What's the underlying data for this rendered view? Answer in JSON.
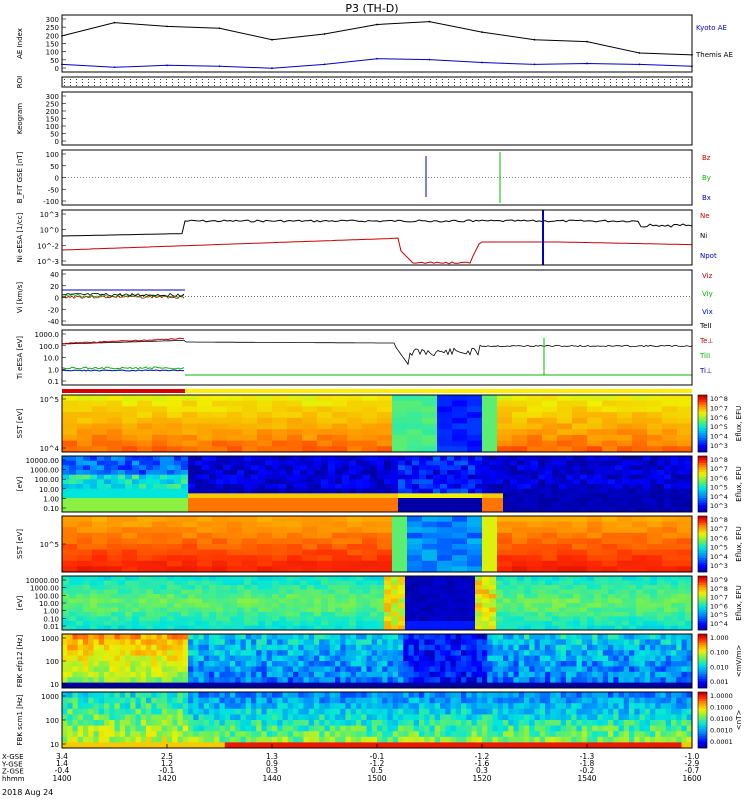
{
  "title": "P3 (TH-D)",
  "footer": {
    "date": "2018 Aug 24",
    "row_labels": [
      "X-GSE",
      "Y-GSE",
      "Z-GSE",
      "hhmm"
    ],
    "columns": [
      {
        "x": "3.4",
        "y": "1.4",
        "z": "-0.4",
        "t": "1400"
      },
      {
        "x": "2.5",
        "y": "1.2",
        "z": "-0.1",
        "t": "1420"
      },
      {
        "x": "1.3",
        "y": "0.9",
        "z": "0.3",
        "t": "1440"
      },
      {
        "x": "-0.1",
        "y": "-1.2",
        "z": "0.5",
        "t": "1500"
      },
      {
        "x": "-1.2",
        "y": "-1.6",
        "z": "0.3",
        "t": "1520"
      },
      {
        "x": "-1.3",
        "y": "-1.8",
        "z": "-0.2",
        "t": "1540"
      },
      {
        "x": "-1.0",
        "y": "-2.9",
        "z": "-0.7",
        "t": "1600"
      }
    ]
  },
  "colors": {
    "kyoto": "#0000cc",
    "red": "#cc0000",
    "green": "#00bb00",
    "blue": "#0000cc",
    "black": "#000000"
  },
  "chart_data": [
    {
      "type": "line",
      "panel": "ae",
      "ylabel": "AE Index",
      "ylim": [
        0,
        300
      ],
      "ticks": [
        "300",
        "250",
        "200",
        "150",
        "100",
        "50",
        "0"
      ],
      "legend": [
        {
          "name": "Kyoto AE",
          "color": "#0000cc"
        },
        {
          "name": "Themis AE",
          "color": "#000000"
        }
      ],
      "x": [
        "1400",
        "1410",
        "1420",
        "1430",
        "1440",
        "1450",
        "1500",
        "1510",
        "1520",
        "1530",
        "1540",
        "1550",
        "1600"
      ],
      "series": [
        {
          "name": "Themis AE",
          "values": [
            190,
            260,
            240,
            230,
            170,
            200,
            250,
            265,
            210,
            170,
            160,
            100,
            90
          ]
        },
        {
          "name": "Kyoto AE",
          "values": [
            40,
            25,
            35,
            30,
            20,
            40,
            70,
            65,
            50,
            40,
            45,
            40,
            30
          ]
        }
      ]
    },
    {
      "type": "line",
      "panel": "roi",
      "ylabel": "ROI"
    },
    {
      "type": "line",
      "panel": "keogram",
      "ylabel": "Keogram",
      "ylim": [
        0,
        300
      ],
      "ticks": [
        "300",
        "250",
        "200",
        "150",
        "100",
        "50",
        "0"
      ]
    },
    {
      "type": "line",
      "panel": "bfit",
      "ylabel": "B_FIT GSE [nT]",
      "ylim": [
        -100,
        100
      ],
      "ticks": [
        "100",
        "50",
        "0",
        "-50",
        "-100"
      ],
      "legend": [
        {
          "name": "Bz",
          "color": "#cc0000"
        },
        {
          "name": "By",
          "color": "#00bb00"
        },
        {
          "name": "Bx",
          "color": "#0000cc"
        }
      ]
    },
    {
      "type": "line",
      "panel": "ni",
      "ylabel": "Ni eESA [1/cc]",
      "ticks": [
        "10^3",
        "10^0",
        "10^-2",
        "10^-3"
      ],
      "legend": [
        {
          "name": "Ne",
          "color": "#cc0000"
        },
        {
          "name": "Ni",
          "color": "#000000"
        },
        {
          "name": "Npot",
          "color": "#0000cc"
        }
      ]
    },
    {
      "type": "line",
      "panel": "vi",
      "ylabel": "Vi [km/s]",
      "ylim": [
        -40,
        40
      ],
      "ticks": [
        "40",
        "20",
        "0",
        "-20",
        "-40"
      ],
      "legend": [
        {
          "name": "Viz",
          "color": "#cc0000"
        },
        {
          "name": "Viy",
          "color": "#00bb00"
        },
        {
          "name": "Vix",
          "color": "#0000cc"
        }
      ]
    },
    {
      "type": "line",
      "panel": "ti",
      "ylabel": "Ti eESA [eV]",
      "ticks": [
        "1000.0",
        "100.0",
        "10.0",
        "1.0",
        "0.1"
      ],
      "legend": [
        {
          "name": "TeII",
          "color": "#000000"
        },
        {
          "name": "Te⊥",
          "color": "#cc0000"
        },
        {
          "name": "TiII",
          "color": "#00bb00"
        },
        {
          "name": "Ti⊥",
          "color": "#0000cc"
        }
      ]
    },
    {
      "type": "heatmap",
      "panel": "sst_i",
      "ylabel": "SST [eV]",
      "ticks": [
        "10^5",
        "10^4"
      ],
      "colorbar": {
        "label": "Eflux, EFU",
        "ticks": [
          "10^8",
          "10^7",
          "10^6",
          "10^5",
          "10^4",
          "10^3"
        ]
      }
    },
    {
      "type": "heatmap",
      "panel": "esa_i",
      "ylabel": "[eV]",
      "ticks": [
        "10000.00",
        "1000.00",
        "100.00",
        "10.00",
        "1.00",
        "0.10"
      ],
      "colorbar": {
        "label": "Eflux, EFU",
        "ticks": [
          "10^8",
          "10^7",
          "10^6",
          "10^5",
          "10^4",
          "10^3"
        ]
      }
    },
    {
      "type": "heatmap",
      "panel": "sst_e",
      "ylabel": "SST [eV]",
      "ticks": [
        "10^5"
      ],
      "colorbar": {
        "label": "Eflux, EFU",
        "ticks": [
          "10^8",
          "10^7",
          "10^6",
          "10^5",
          "10^4",
          "10^3"
        ]
      }
    },
    {
      "type": "heatmap",
      "panel": "esa_e",
      "ylabel": "[eV]",
      "ticks": [
        "10000.00",
        "1000.00",
        "100.00",
        "10.00",
        "1.00",
        "0.10",
        "0.01"
      ],
      "colorbar": {
        "label": "Eflux, EFU",
        "ticks": [
          "10^9",
          "10^8",
          "10^7",
          "10^6",
          "10^5",
          "10^4"
        ]
      }
    },
    {
      "type": "heatmap",
      "panel": "fbk_e",
      "ylabel": "FBK efp12 [Hz]",
      "ticks": [
        "1000",
        "100",
        "10"
      ],
      "colorbar": {
        "label": "<mV/m>",
        "ticks": [
          "1.000",
          "0.100",
          "0.010",
          "0.001"
        ]
      }
    },
    {
      "type": "heatmap",
      "panel": "fbk_b",
      "ylabel": "FBK scm1 [Hz]",
      "ticks": [
        "1000",
        "100",
        "10"
      ],
      "colorbar": {
        "label": "<nT>",
        "ticks": [
          "1.0000",
          "0.1000",
          "0.0100",
          "0.0010",
          "0.0001"
        ]
      }
    }
  ]
}
